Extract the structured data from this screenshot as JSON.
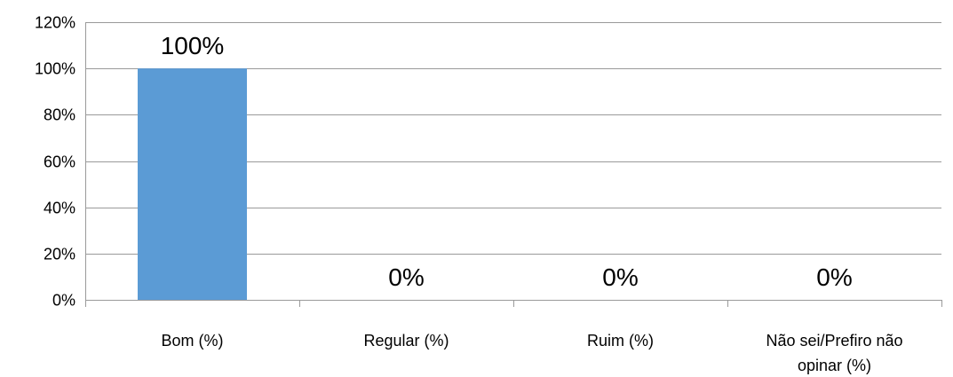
{
  "chart_data": {
    "type": "bar",
    "categories": [
      [
        "Bom (%)"
      ],
      [
        "Regular (%)"
      ],
      [
        "Ruim (%)"
      ],
      [
        "Não sei/Prefiro não",
        "opinar (%)"
      ]
    ],
    "values": [
      100,
      0,
      0,
      0
    ],
    "data_labels": [
      "100%",
      "0%",
      "0%",
      "0%"
    ],
    "y_ticks": [
      "0%",
      "20%",
      "40%",
      "60%",
      "80%",
      "100%",
      "120%"
    ],
    "ylim": [
      0,
      120
    ],
    "y_step": 20,
    "grid": true,
    "legend": "none",
    "bar_color": "#5b9bd5"
  }
}
